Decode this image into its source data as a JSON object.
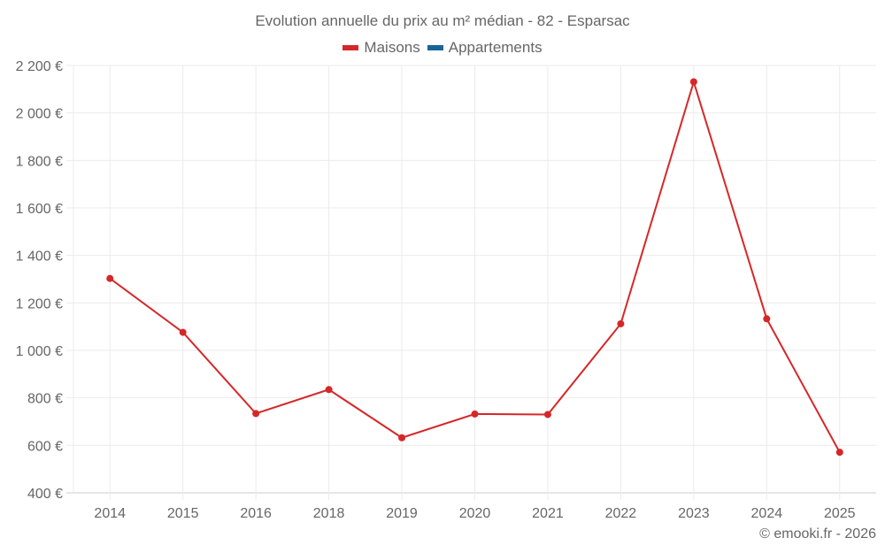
{
  "chart_data": {
    "type": "line",
    "title": "Evolution annuelle du prix au m² médian - 82 - Esparsac",
    "xlabel": "",
    "ylabel": "",
    "categories": [
      "2014",
      "2015",
      "2016",
      "2018",
      "2019",
      "2020",
      "2021",
      "2022",
      "2023",
      "2024",
      "2025"
    ],
    "series": [
      {
        "name": "Maisons",
        "color": "#d62728",
        "values": [
          1303,
          1076,
          734,
          835,
          632,
          732,
          730,
          1112,
          2131,
          1133,
          571
        ]
      },
      {
        "name": "Appartements",
        "color": "#1a6496",
        "values": []
      }
    ],
    "ylim": [
      400,
      2200
    ],
    "yticks": [
      400,
      600,
      800,
      1000,
      1200,
      1400,
      1600,
      1800,
      2000,
      2200
    ],
    "ytick_labels": [
      "400 €",
      "600 €",
      "800 €",
      "1 000 €",
      "1 200 €",
      "1 400 €",
      "1 600 €",
      "1 800 €",
      "2 000 €",
      "2 200 €"
    ],
    "grid": true,
    "legend_position": "top-center"
  },
  "legend": {
    "items": [
      {
        "label": "Maisons",
        "color": "#d62728"
      },
      {
        "label": "Appartements",
        "color": "#1a6496"
      }
    ]
  },
  "credit": "© emooki.fr - 2026"
}
